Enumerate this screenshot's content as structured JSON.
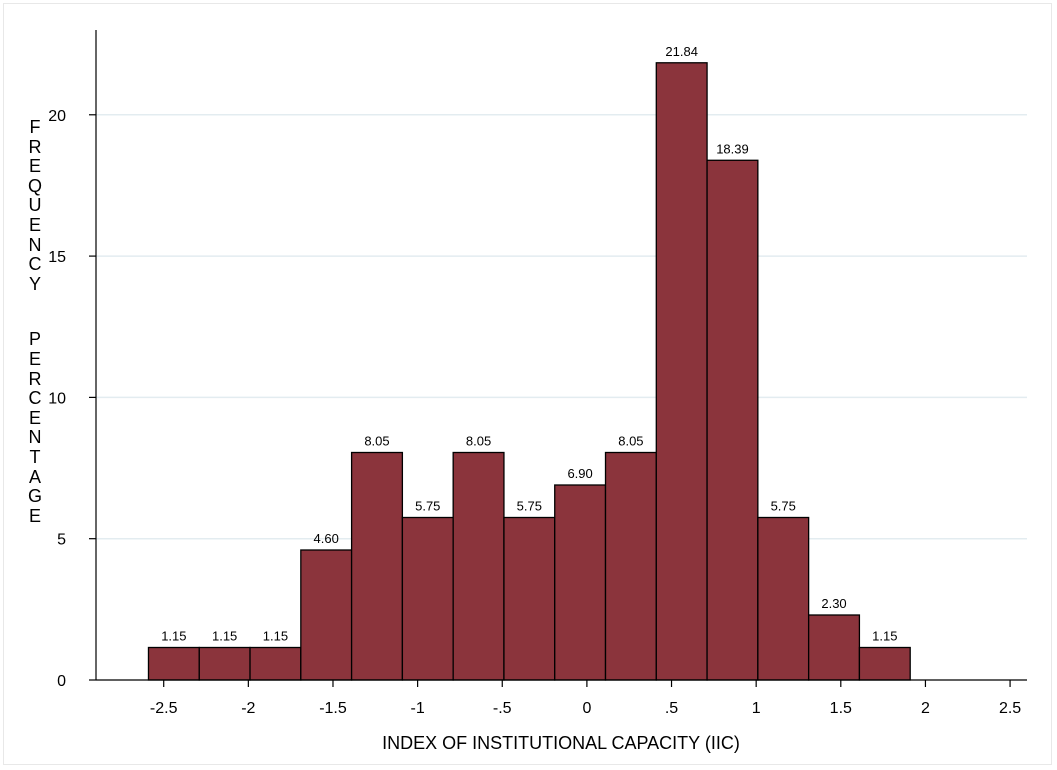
{
  "chart_data": {
    "type": "bar",
    "subtype": "histogram",
    "title": "",
    "xlabel": "INDEX OF INSTITUTIONAL CAPACITY (IIC)",
    "ylabel_words": [
      "FREQUENCY",
      "PERCENTAGE"
    ],
    "ylabel": "FREQUENCY PERCENTAGE",
    "bin_edges": [
      -2.59,
      -2.29,
      -1.99,
      -1.69,
      -1.39,
      -1.09,
      -0.79,
      -0.49,
      -0.19,
      0.11,
      0.41,
      0.71,
      1.01,
      1.31,
      1.61,
      1.91
    ],
    "values": [
      1.15,
      1.15,
      1.15,
      4.6,
      8.05,
      5.75,
      8.05,
      5.75,
      6.9,
      8.05,
      21.84,
      18.39,
      5.75,
      2.3,
      1.15
    ],
    "value_labels": [
      "1.15",
      "1.15",
      "1.15",
      "4.60",
      "8.05",
      "5.75",
      "8.05",
      "5.75",
      "6.90",
      "8.05",
      "21.84",
      "18.39",
      "5.75",
      "2.30",
      "1.15"
    ],
    "xticks": [
      -2.5,
      -2,
      -1.5,
      -1,
      -0.5,
      0,
      0.5,
      1,
      1.5,
      2,
      2.5
    ],
    "xtick_labels": [
      "-2.5",
      "-2",
      "-1.5",
      "-1",
      "-.5",
      "0",
      ".5",
      "1",
      "1.5",
      "2",
      "2.5"
    ],
    "yticks": [
      0,
      5,
      10,
      15,
      20
    ],
    "ytick_labels": [
      "0",
      "5",
      "10",
      "15",
      "20"
    ],
    "xlim": [
      -2.9,
      2.6
    ],
    "ylim": [
      0,
      23
    ],
    "grid": true,
    "grid_axis": "y",
    "legend": "none",
    "colors": {
      "bar_fill": "#8B343C",
      "bar_edge": "#000000",
      "grid": "#e3ecf0",
      "axis": "#000000"
    }
  }
}
